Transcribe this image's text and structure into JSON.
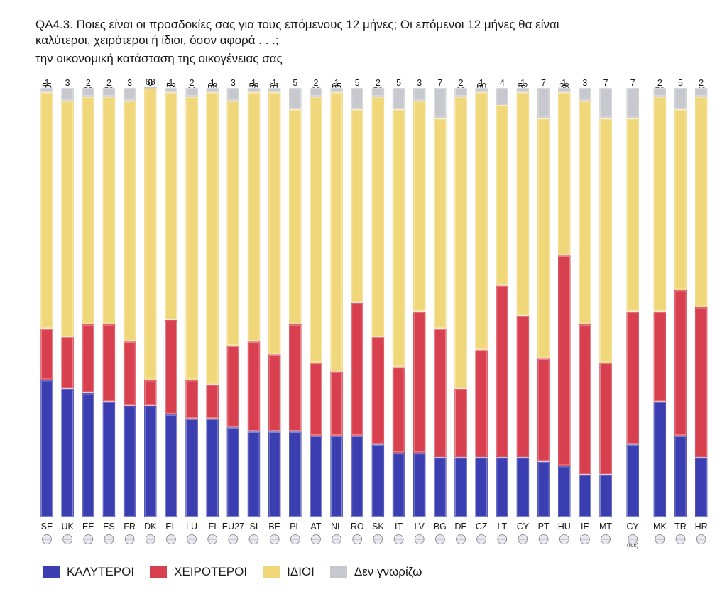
{
  "title_line1": "QA4.3. Ποιες είναι οι προσδοκίες σας για τους επόμενους 12 μήνες; Οι επόμενοι 12 μήνες θα είναι",
  "title_line2": "καλύτεροι, χειρότεροι ή ίδιοι, όσον αφορά . . .;",
  "subtitle": "την οικονομική κατάσταση της οικογένειας σας",
  "colors": {
    "better": "#3a3eb0",
    "worse": "#d9404f",
    "same": "#f0d77a",
    "dk": "#c8c9ce"
  },
  "legend": [
    {
      "key": "better",
      "label": "ΚΑΛΥΤΕΡΟΙ"
    },
    {
      "key": "worse",
      "label": "ΧΕΙΡΟΤΕΡΟΙ"
    },
    {
      "key": "same",
      "label": "ΙΔΙΟΙ"
    },
    {
      "key": "dk",
      "label": "Δεν γνωρίζω"
    }
  ],
  "chart_data": {
    "type": "bar",
    "stacked": true,
    "title": "την οικονομική κατάσταση της οικογένειας σας",
    "ylim": [
      0,
      100
    ],
    "grid": false,
    "categories": [
      "SE",
      "UK",
      "EE",
      "ES",
      "FR",
      "DK",
      "EL",
      "LU",
      "FI",
      "EU27",
      "SI",
      "BE",
      "PL",
      "AT",
      "NL",
      "RO",
      "SK",
      "IT",
      "LV",
      "BG",
      "DE",
      "CZ",
      "LT",
      "CY",
      "PT",
      "HU",
      "IE",
      "MT",
      "CY",
      "MK",
      "TR",
      "HR"
    ],
    "category_notes": {
      "28": "(tcc)"
    },
    "groups": [
      [
        0,
        27
      ],
      [
        28,
        28
      ],
      [
        29,
        31
      ]
    ],
    "series": [
      {
        "name": "ΚΑΛΥΤΕΡΟΙ",
        "key": "better",
        "values": [
          32,
          30,
          29,
          27,
          26,
          26,
          24,
          23,
          23,
          21,
          20,
          20,
          20,
          19,
          19,
          19,
          17,
          15,
          15,
          14,
          14,
          14,
          14,
          14,
          13,
          12,
          10,
          10,
          17,
          27,
          19,
          14
        ]
      },
      {
        "name": "ΧΕΙΡΟΤΕΡΟΙ",
        "key": "worse",
        "values": [
          12,
          12,
          16,
          18,
          15,
          6,
          22,
          9,
          8,
          19,
          21,
          18,
          25,
          17,
          15,
          31,
          25,
          20,
          33,
          30,
          16,
          25,
          40,
          33,
          24,
          49,
          35,
          26,
          31,
          21,
          34,
          35
        ]
      },
      {
        "name": "ΙΔΙΟΙ",
        "key": "same",
        "values": [
          55,
          55,
          53,
          53,
          56,
          68,
          53,
          66,
          68,
          57,
          58,
          61,
          50,
          62,
          65,
          45,
          56,
          60,
          49,
          49,
          68,
          60,
          42,
          52,
          56,
          38,
          52,
          57,
          45,
          50,
          42,
          49
        ]
      },
      {
        "name": "Δεν γνωρίζω",
        "key": "dk",
        "values": [
          1,
          3,
          2,
          2,
          3,
          0,
          1,
          2,
          1,
          3,
          1,
          1,
          5,
          2,
          1,
          5,
          2,
          5,
          3,
          7,
          2,
          1,
          4,
          1,
          7,
          1,
          3,
          7,
          7,
          2,
          5,
          2
        ]
      }
    ],
    "flags": [
      "se",
      "uk",
      "ee",
      "es",
      "fr",
      "dk",
      "el",
      "lu",
      "fi",
      "eu",
      "si",
      "be",
      "pl",
      "at",
      "nl",
      "ro",
      "sk",
      "it",
      "lv",
      "bg",
      "de",
      "cz",
      "lt",
      "cy",
      "pt",
      "hu",
      "ie",
      "mt",
      "cytcc",
      "mk",
      "tr",
      "hr"
    ]
  }
}
